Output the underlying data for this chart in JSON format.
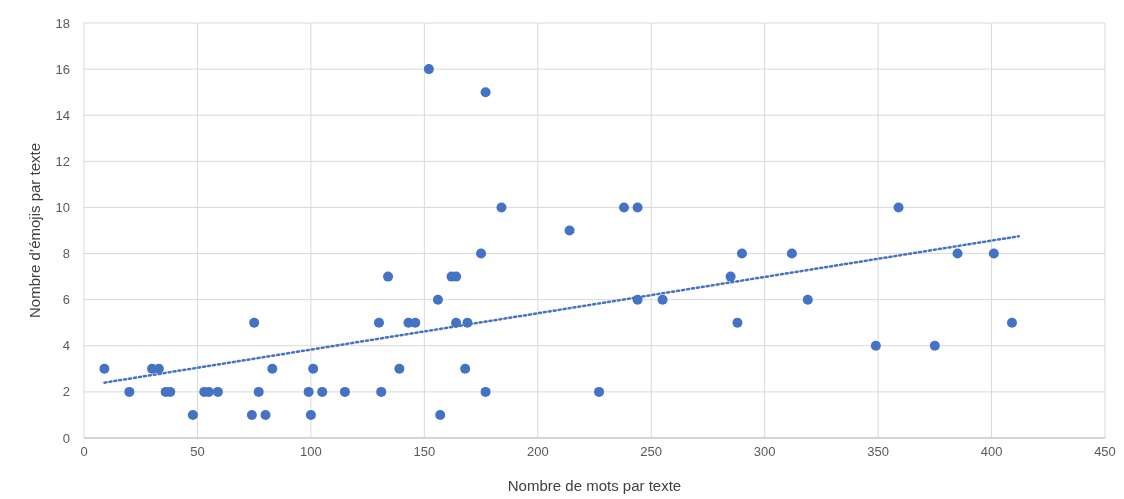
{
  "chart_data": {
    "type": "scatter",
    "xlabel": "Nombre de mots par texte",
    "ylabel": "Nombre d’émojis par texte",
    "xlim": [
      0,
      450
    ],
    "xticks": [
      0,
      50,
      100,
      150,
      200,
      250,
      300,
      350,
      400,
      450
    ],
    "ylim": [
      0,
      18
    ],
    "yticks": [
      0,
      2,
      4,
      6,
      8,
      10,
      12,
      14,
      16,
      18
    ],
    "grid": true,
    "series": [
      {
        "color": "#4472c4",
        "marker": "circle",
        "x": [
          9,
          20,
          30,
          33,
          36,
          38,
          48,
          53,
          55,
          59,
          74,
          75,
          77,
          80,
          83,
          99,
          100,
          101,
          105,
          115,
          130,
          131,
          134,
          139,
          143,
          146,
          152,
          156,
          157,
          162,
          164,
          164,
          168,
          169,
          175,
          177,
          177,
          184,
          214,
          227,
          238,
          244,
          244,
          255,
          285,
          288,
          290,
          312,
          319,
          349,
          359,
          375,
          385,
          401,
          409
        ],
        "values": [
          3,
          2,
          3,
          3,
          2,
          2,
          1,
          2,
          2,
          2,
          1,
          5,
          2,
          1,
          3,
          2,
          1,
          3,
          2,
          2,
          5,
          2,
          7,
          3,
          5,
          5,
          16,
          6,
          1,
          7,
          7,
          5,
          3,
          5,
          8,
          15,
          2,
          10,
          9,
          2,
          10,
          10,
          6,
          6,
          7,
          5,
          8,
          8,
          6,
          4,
          10,
          4,
          8,
          8,
          5
        ]
      },
      {
        "type": "line",
        "color": "#4472c4",
        "line_style": "dotted",
        "marker": "none",
        "x": [
          9,
          412
        ],
        "values": [
          2.4,
          8.75
        ]
      }
    ]
  }
}
